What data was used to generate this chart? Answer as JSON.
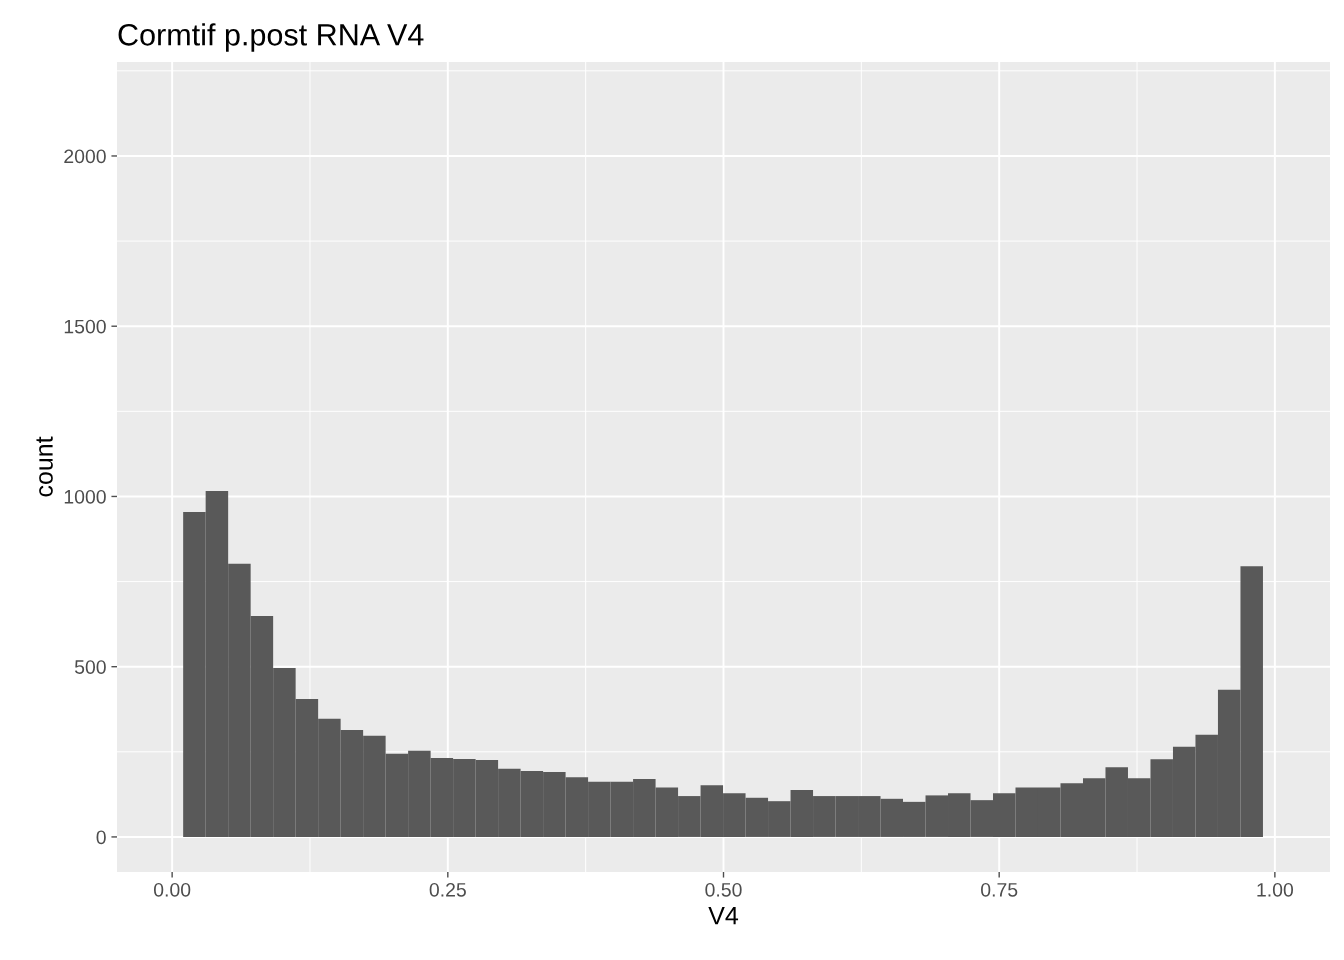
{
  "chart_data": {
    "type": "histogram",
    "title": "Cormtif p.post RNA V4",
    "xlabel": "V4",
    "ylabel": "count",
    "color": "#595959",
    "bins": [
      0.01,
      0.0304,
      0.0508,
      0.0712,
      0.0916,
      0.112,
      0.1324,
      0.1528,
      0.1732,
      0.1936,
      0.214,
      0.2344,
      0.2548,
      0.2752,
      0.2956,
      0.316,
      0.3364,
      0.3568,
      0.3772,
      0.3976,
      0.418,
      0.4384,
      0.4588,
      0.4792,
      0.4996,
      0.52,
      0.5404,
      0.5608,
      0.5812,
      0.6016,
      0.622,
      0.6424,
      0.6628,
      0.6832,
      0.7036,
      0.724,
      0.7444,
      0.7648,
      0.7852,
      0.8056,
      0.826,
      0.8464,
      0.8668,
      0.8872,
      0.9076,
      0.928,
      0.9484,
      0.9688,
      0.9892
    ],
    "values": [
      954,
      1016,
      802,
      649,
      496,
      405,
      347,
      314,
      297,
      244,
      253,
      232,
      229,
      226,
      200,
      194,
      191,
      175,
      162,
      162,
      170,
      145,
      120,
      152,
      128,
      115,
      105,
      138,
      120,
      120,
      120,
      112,
      103,
      122,
      128,
      108,
      128,
      145,
      145,
      158,
      172,
      205,
      172,
      228,
      265,
      300,
      432,
      795
    ],
    "xlim": [
      -0.05,
      1.05
    ],
    "xticks": [
      {
        "value": 0,
        "label": "0.00"
      },
      {
        "value": 0.25,
        "label": "0.25"
      },
      {
        "value": 0.5,
        "label": "0.50"
      },
      {
        "value": 0.75,
        "label": "0.75"
      },
      {
        "value": 1,
        "label": "1.00"
      }
    ],
    "ylim": [
      -103,
      2276
    ],
    "yticks": [
      0,
      500,
      1000,
      1500,
      2000
    ],
    "grid": true
  }
}
